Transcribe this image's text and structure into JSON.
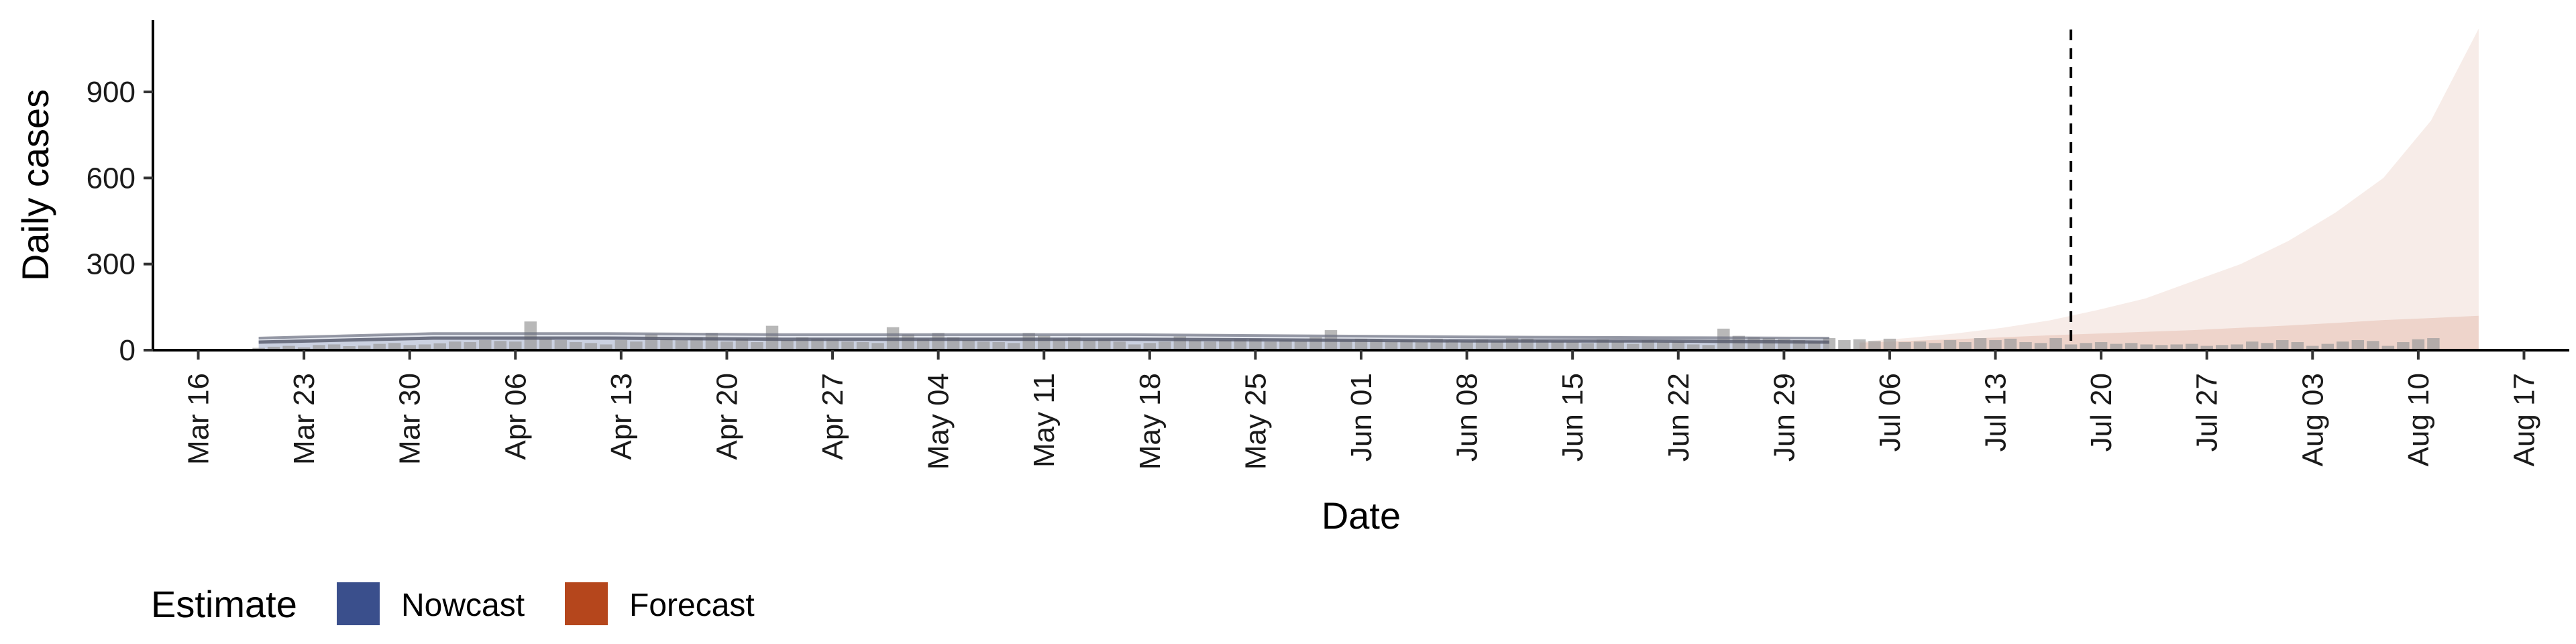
{
  "chart_data": {
    "type": "bar",
    "xlabel": "Date",
    "ylabel": "Daily cases",
    "ylim": [
      0,
      1150
    ],
    "y_ticks": [
      0,
      300,
      600,
      900
    ],
    "x_range": [
      "2020-03-13",
      "2020-08-20"
    ],
    "x_ticks": [
      "Mar 16",
      "Mar 23",
      "Mar 30",
      "Apr 06",
      "Apr 13",
      "Apr 20",
      "Apr 27",
      "May 04",
      "May 11",
      "May 18",
      "May 25",
      "Jun 01",
      "Jun 08",
      "Jun 15",
      "Jun 22",
      "Jun 29",
      "Jul 06",
      "Jul 13",
      "Jul 20",
      "Jul 27",
      "Aug 03",
      "Aug 10",
      "Aug 17"
    ],
    "x_ticks_dates": [
      "2020-03-16",
      "2020-03-23",
      "2020-03-30",
      "2020-04-06",
      "2020-04-13",
      "2020-04-20",
      "2020-04-27",
      "2020-05-04",
      "2020-05-11",
      "2020-05-18",
      "2020-05-25",
      "2020-06-01",
      "2020-06-08",
      "2020-06-15",
      "2020-06-22",
      "2020-06-29",
      "2020-07-06",
      "2020-07-13",
      "2020-07-20",
      "2020-07-27",
      "2020-08-03",
      "2020-08-10",
      "2020-08-17"
    ],
    "observed_cases": {
      "start": "2020-03-20",
      "values": [
        8,
        12,
        15,
        10,
        18,
        20,
        14,
        16,
        22,
        25,
        18,
        20,
        24,
        30,
        28,
        35,
        32,
        30,
        100,
        40,
        35,
        28,
        25,
        20,
        35,
        30,
        55,
        40,
        35,
        45,
        60,
        30,
        40,
        28,
        85,
        35,
        45,
        40,
        38,
        30,
        28,
        25,
        80,
        55,
        40,
        60,
        45,
        35,
        30,
        28,
        25,
        60,
        50,
        40,
        45,
        35,
        38,
        30,
        20,
        25,
        30,
        48,
        35,
        30,
        35,
        38,
        40,
        30,
        35,
        32,
        45,
        70,
        35,
        40,
        38,
        30,
        35,
        28,
        40,
        35,
        30,
        38,
        32,
        42,
        40,
        35,
        30,
        28,
        25,
        38,
        30,
        22,
        35,
        28,
        30,
        20,
        18,
        75,
        50,
        45,
        42,
        38,
        35,
        30,
        42,
        35,
        38,
        32,
        40,
        28,
        30,
        25,
        35,
        28,
        42,
        35,
        40,
        28,
        25,
        42,
        20,
        25,
        28,
        22,
        25,
        20,
        18,
        20,
        22,
        15,
        18,
        20,
        30,
        25,
        35,
        28,
        15,
        22,
        30,
        35,
        32,
        15,
        28,
        38,
        42
      ]
    },
    "series": [
      {
        "name": "Nowcast",
        "color": "#3a4f8c",
        "start": "2020-03-20",
        "end": "2020-07-02",
        "median": [
          28,
          42,
          42,
          38,
          38,
          38,
          35,
          32,
          32,
          28
        ],
        "inner_upper": [
          34,
          48,
          48,
          44,
          44,
          44,
          40,
          38,
          36,
          34
        ],
        "outer_upper": [
          42,
          58,
          58,
          54,
          54,
          54,
          50,
          46,
          44,
          42
        ]
      },
      {
        "name": "Forecast",
        "color": "#b5461c",
        "start": "2020-07-04",
        "end": "2020-08-14",
        "median": [
          18,
          20,
          23,
          26,
          30,
          35,
          41,
          48,
          56,
          66,
          78,
          90,
          104,
          120
        ],
        "inner_upper": [
          26,
          32,
          38,
          45,
          52,
          58,
          64,
          70,
          78,
          86,
          95,
          105,
          112,
          120
        ],
        "outer_upper": [
          30,
          42,
          58,
          78,
          104,
          140,
          180,
          240,
          300,
          380,
          480,
          600,
          800,
          1120
        ]
      }
    ],
    "vline_date": "2020-07-18",
    "legend": {
      "title": "Estimate",
      "entries": [
        {
          "label": "Nowcast",
          "color": "#3a4f8c"
        },
        {
          "label": "Forecast",
          "color": "#b5461c"
        }
      ],
      "position": "bottom-left"
    },
    "grid": false
  }
}
